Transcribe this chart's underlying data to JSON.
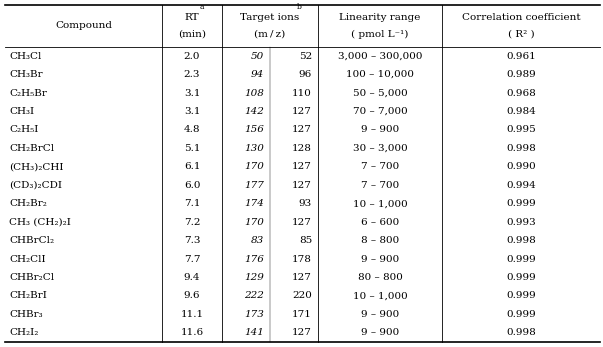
{
  "rows": [
    [
      "CH₃Cl",
      "2.0",
      "50",
      "52",
      "3,000 – 300,000",
      "0.961"
    ],
    [
      "CH₃Br",
      "2.3",
      "94",
      "96",
      "100 – 10,000",
      "0.989"
    ],
    [
      "C₂H₅Br",
      "3.1",
      "108",
      "110",
      "50 – 5,000",
      "0.968"
    ],
    [
      "CH₃I",
      "3.1",
      "142",
      "127",
      "70 – 7,000",
      "0.984"
    ],
    [
      "C₂H₅I",
      "4.8",
      "156",
      "127",
      "9 – 900",
      "0.995"
    ],
    [
      "CH₂BrCl",
      "5.1",
      "130",
      "128",
      "30 – 3,000",
      "0.998"
    ],
    [
      "(CH₃)₂CHI",
      "6.1",
      "170",
      "127",
      "7 – 700",
      "0.990"
    ],
    [
      "(CD₃)₂CDI",
      "6.0",
      "177",
      "127",
      "7 – 700",
      "0.994"
    ],
    [
      "CH₂Br₂",
      "7.1",
      "174",
      "93",
      "10 – 1,000",
      "0.999"
    ],
    [
      "CH₃ (CH₂)₂I",
      "7.2",
      "170",
      "127",
      "6 – 600",
      "0.993"
    ],
    [
      "CHBrCl₂",
      "7.3",
      "83",
      "85",
      "8 – 800",
      "0.998"
    ],
    [
      "CH₂ClI",
      "7.7",
      "176",
      "178",
      "9 – 900",
      "0.999"
    ],
    [
      "CHBr₂Cl",
      "9.4",
      "129",
      "127",
      "80 – 800",
      "0.999"
    ],
    [
      "CH₂BrI",
      "9.6",
      "222",
      "220",
      "10 – 1,000",
      "0.999"
    ],
    [
      "CHBr₃",
      "11.1",
      "173",
      "171",
      "9 – 900",
      "0.999"
    ],
    [
      "CH₂I₂",
      "11.6",
      "141",
      "127",
      "9 – 900",
      "0.998"
    ]
  ],
  "font_size": 7.5,
  "header_font_size": 7.5,
  "fig_width": 6.03,
  "fig_height": 3.47,
  "dpi": 100
}
